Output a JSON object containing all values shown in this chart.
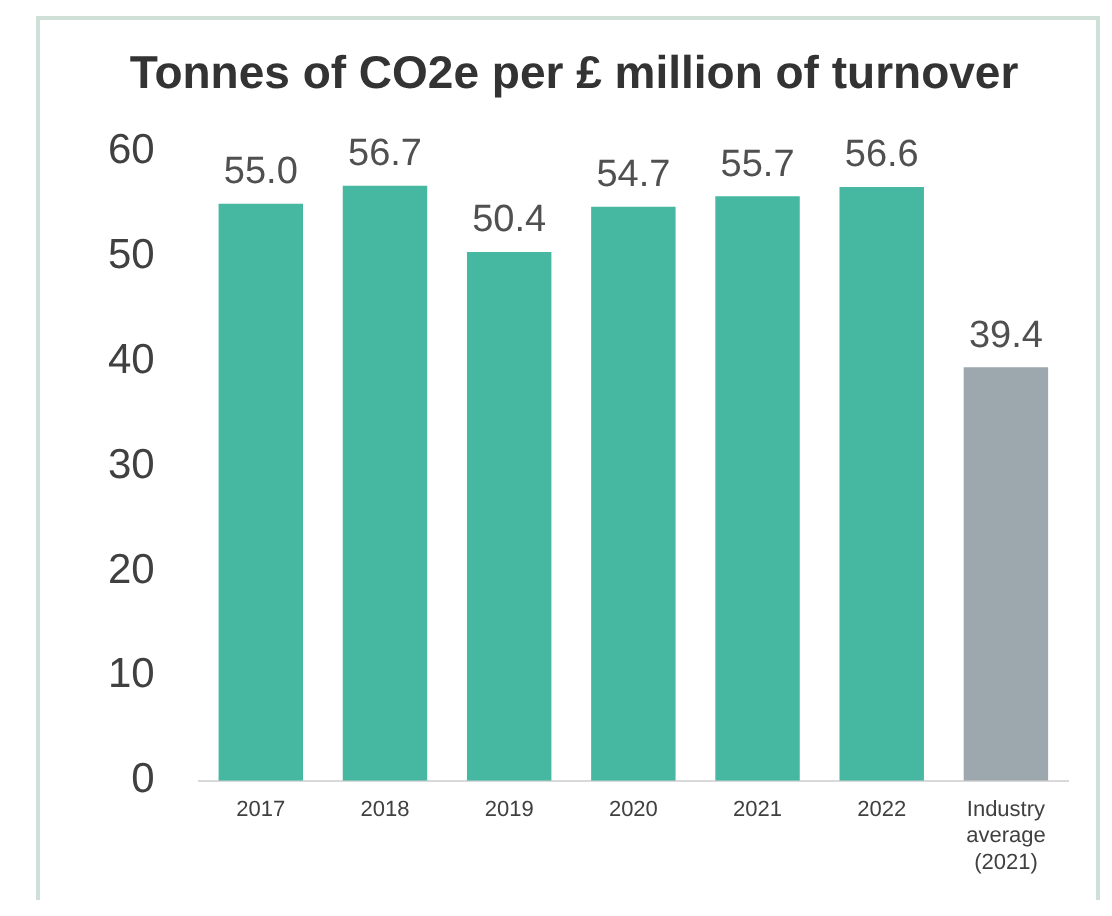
{
  "chart_data": {
    "type": "bar",
    "title": "Tonnes of CO2e per £ million of turnover",
    "categories": [
      "2017",
      "2018",
      "2019",
      "2020",
      "2021",
      "2022",
      "Industry average (2021)"
    ],
    "values": [
      55.0,
      56.7,
      50.4,
      54.7,
      55.7,
      56.6,
      39.4
    ],
    "colors": [
      "#46b8a2",
      "#46b8a2",
      "#46b8a2",
      "#46b8a2",
      "#46b8a2",
      "#46b8a2",
      "#9da8ae"
    ],
    "value_labels": [
      "55.0",
      "56.7",
      "50.4",
      "54.7",
      "55.7",
      "56.6",
      "39.4"
    ],
    "ylim": [
      0,
      60
    ],
    "yticks": [
      0,
      10,
      20,
      30,
      40,
      50,
      60
    ],
    "grid": false,
    "legend": false
  }
}
